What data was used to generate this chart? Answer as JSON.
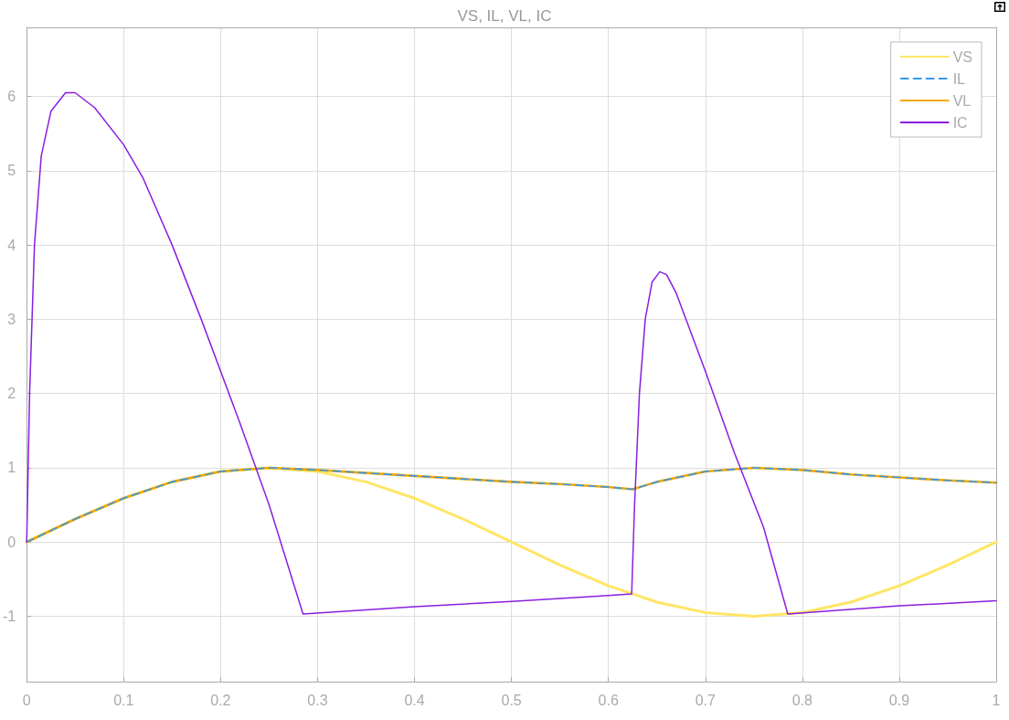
{
  "chart_data": {
    "type": "line",
    "title": "VS, IL, VL, IC",
    "xlim": [
      0,
      1
    ],
    "xticks": [
      0,
      0.1,
      0.2,
      0.3,
      0.4,
      0.5,
      0.6,
      0.7,
      0.8,
      0.9,
      1
    ],
    "ylim": [
      -1.88,
      6.93
    ],
    "yticks": [
      -1,
      0,
      1,
      2,
      3,
      4,
      5,
      6
    ],
    "grid": true,
    "legend": "top right",
    "marker": "none",
    "series": [
      {
        "name": "VS",
        "color": "#ffe566",
        "line_style": "solid",
        "x": [
          0,
          0.05,
          0.1,
          0.15,
          0.2,
          0.25,
          0.3,
          0.35,
          0.4,
          0.45,
          0.5,
          0.55,
          0.6,
          0.65,
          0.7,
          0.75,
          0.8,
          0.85,
          0.9,
          0.95,
          1
        ],
        "values": [
          0,
          0.31,
          0.59,
          0.81,
          0.95,
          1,
          0.95,
          0.81,
          0.59,
          0.31,
          0,
          -0.31,
          -0.59,
          -0.81,
          -0.95,
          -1,
          -0.95,
          -0.81,
          -0.59,
          -0.31,
          0
        ]
      },
      {
        "name": "IL",
        "color": "#3399ee",
        "line_style": "dashed",
        "x": [
          0,
          0.05,
          0.1,
          0.15,
          0.2,
          0.25,
          0.3,
          0.35,
          0.4,
          0.45,
          0.5,
          0.55,
          0.6,
          0.625,
          0.65,
          0.7,
          0.75,
          0.8,
          0.85,
          0.9,
          0.95,
          1
        ],
        "values": [
          0,
          0.31,
          0.59,
          0.81,
          0.95,
          1,
          0.97,
          0.93,
          0.89,
          0.85,
          0.81,
          0.78,
          0.74,
          0.71,
          0.81,
          0.95,
          1,
          0.97,
          0.91,
          0.87,
          0.83,
          0.8
        ]
      },
      {
        "name": "VL",
        "color": "#f5a800",
        "line_style": "solid",
        "x": [
          0,
          0.05,
          0.1,
          0.15,
          0.2,
          0.25,
          0.3,
          0.35,
          0.4,
          0.45,
          0.5,
          0.55,
          0.6,
          0.625,
          0.65,
          0.7,
          0.75,
          0.8,
          0.85,
          0.9,
          0.95,
          1
        ],
        "values": [
          0,
          0.31,
          0.59,
          0.81,
          0.95,
          1,
          0.97,
          0.93,
          0.89,
          0.85,
          0.81,
          0.78,
          0.74,
          0.71,
          0.81,
          0.95,
          1,
          0.97,
          0.91,
          0.87,
          0.83,
          0.8
        ]
      },
      {
        "name": "IC",
        "color": "#8a1ee0",
        "line_style": "solid",
        "x": [
          0,
          0.003,
          0.008,
          0.015,
          0.025,
          0.04,
          0.05,
          0.07,
          0.1,
          0.12,
          0.15,
          0.18,
          0.2,
          0.22,
          0.25,
          0.285,
          0.4,
          0.5,
          0.6,
          0.624,
          0.627,
          0.632,
          0.638,
          0.645,
          0.653,
          0.66,
          0.67,
          0.7,
          0.73,
          0.76,
          0.785,
          0.9,
          1
        ],
        "values": [
          0,
          2,
          4,
          5.2,
          5.8,
          6.05,
          6.05,
          5.85,
          5.35,
          4.9,
          4,
          3,
          2.3,
          1.6,
          0.5,
          -0.97,
          -0.87,
          -0.8,
          -0.72,
          -0.7,
          0.5,
          2,
          3,
          3.5,
          3.64,
          3.6,
          3.35,
          2.3,
          1.2,
          0.2,
          -0.97,
          -0.86,
          -0.79
        ]
      }
    ]
  }
}
